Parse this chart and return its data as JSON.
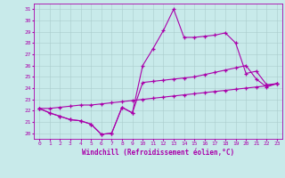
{
  "xlabel": "Windchill (Refroidissement éolien,°C)",
  "bg_color": "#c8eaea",
  "grid_color": "#aacccc",
  "line_color": "#aa00aa",
  "spine_color": "#aa00aa",
  "tick_color": "#aa00aa",
  "label_color": "#aa00aa",
  "xlim": [
    -0.5,
    23.5
  ],
  "ylim": [
    19.5,
    31.5
  ],
  "xticks": [
    0,
    1,
    2,
    3,
    4,
    5,
    6,
    7,
    8,
    9,
    10,
    11,
    12,
    13,
    14,
    15,
    16,
    17,
    18,
    19,
    20,
    21,
    22,
    23
  ],
  "yticks": [
    20,
    21,
    22,
    23,
    24,
    25,
    26,
    27,
    28,
    29,
    30,
    31
  ],
  "series": [
    [
      22.2,
      21.8,
      21.5,
      21.2,
      21.1,
      20.8,
      19.9,
      20.0,
      22.3,
      21.8,
      26.0,
      27.5,
      29.1,
      31.0,
      28.5,
      28.5,
      28.6,
      28.7,
      28.9,
      28.0,
      25.3,
      25.5,
      24.3,
      24.4
    ],
    [
      22.2,
      21.8,
      21.5,
      21.2,
      21.1,
      20.8,
      19.9,
      20.0,
      22.3,
      21.8,
      24.5,
      24.6,
      24.7,
      24.8,
      24.9,
      25.0,
      25.2,
      25.4,
      25.6,
      25.8,
      26.0,
      24.8,
      24.1,
      24.4
    ],
    [
      22.2,
      22.2,
      22.3,
      22.4,
      22.5,
      22.5,
      22.6,
      22.7,
      22.8,
      22.9,
      23.0,
      23.1,
      23.2,
      23.3,
      23.4,
      23.5,
      23.6,
      23.7,
      23.8,
      23.9,
      24.0,
      24.1,
      24.2,
      24.4
    ]
  ]
}
